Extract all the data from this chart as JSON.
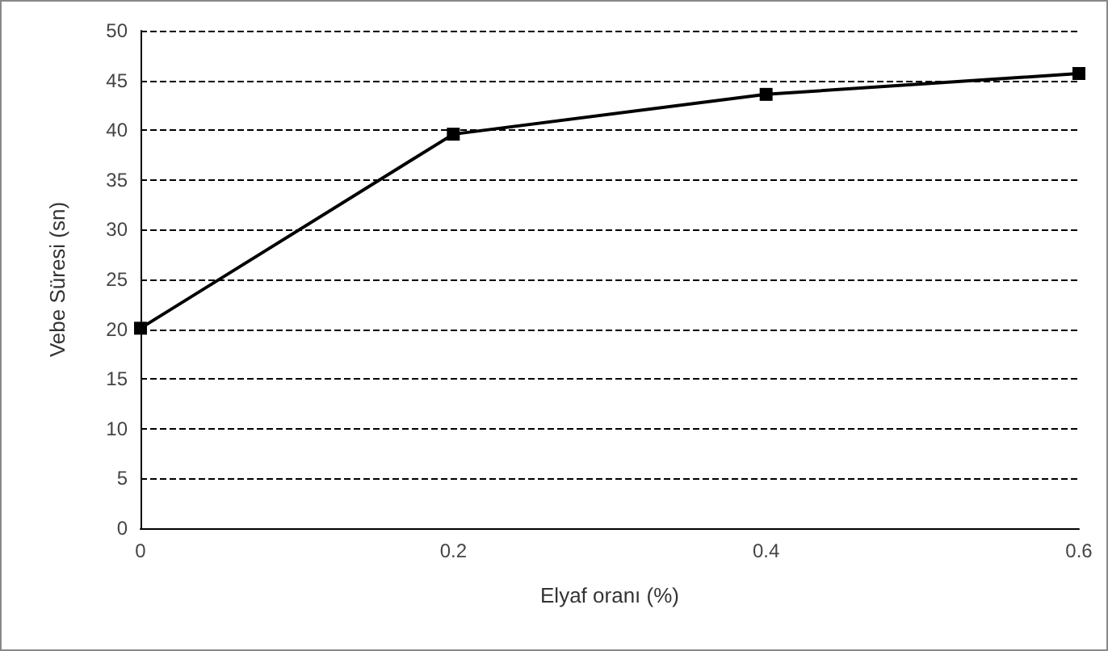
{
  "chart_data": {
    "type": "line",
    "xlabel": "Elyaf oranı (%)",
    "ylabel": "Vebe Süresi (sn)",
    "x": [
      0,
      0.2,
      0.4,
      0.6
    ],
    "series": [
      {
        "color": "#000000",
        "values": [
          20.1,
          39.6,
          43.6,
          45.7
        ]
      }
    ],
    "xlim": [
      0,
      0.6
    ],
    "xticks": [
      0,
      0.2,
      0.4,
      0.6
    ],
    "ylim": [
      0,
      50
    ],
    "yticks": [
      0,
      5,
      10,
      15,
      20,
      25,
      30,
      35,
      40,
      45,
      50
    ],
    "grid": "y",
    "marker": "square",
    "line_style": "solid"
  }
}
